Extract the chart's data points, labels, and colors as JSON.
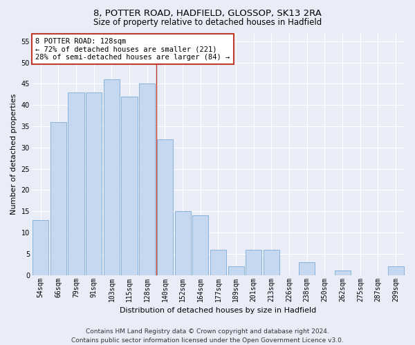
{
  "title1": "8, POTTER ROAD, HADFIELD, GLOSSOP, SK13 2RA",
  "title2": "Size of property relative to detached houses in Hadfield",
  "xlabel": "Distribution of detached houses by size in Hadfield",
  "ylabel": "Number of detached properties",
  "categories": [
    "54sqm",
    "66sqm",
    "79sqm",
    "91sqm",
    "103sqm",
    "115sqm",
    "128sqm",
    "140sqm",
    "152sqm",
    "164sqm",
    "177sqm",
    "189sqm",
    "201sqm",
    "213sqm",
    "226sqm",
    "238sqm",
    "250sqm",
    "262sqm",
    "275sqm",
    "287sqm",
    "299sqm"
  ],
  "values": [
    13,
    36,
    43,
    43,
    46,
    42,
    45,
    32,
    15,
    14,
    6,
    2,
    6,
    6,
    0,
    3,
    0,
    1,
    0,
    0,
    2
  ],
  "bar_color": "#c5d8f0",
  "bar_edge_color": "#7aabd4",
  "highlight_index": 6,
  "highlight_line_color": "#c0392b",
  "ylim": [
    0,
    57
  ],
  "yticks": [
    0,
    5,
    10,
    15,
    20,
    25,
    30,
    35,
    40,
    45,
    50,
    55
  ],
  "annotation_text": "8 POTTER ROAD: 128sqm\n← 72% of detached houses are smaller (221)\n28% of semi-detached houses are larger (84) →",
  "annotation_box_color": "#ffffff",
  "annotation_box_edge_color": "#c0392b",
  "footer_line1": "Contains HM Land Registry data © Crown copyright and database right 2024.",
  "footer_line2": "Contains public sector information licensed under the Open Government Licence v3.0.",
  "background_color": "#e8edf8",
  "grid_color": "#ffffff",
  "title_fontsize": 9.5,
  "subtitle_fontsize": 8.5,
  "tick_fontsize": 7,
  "label_fontsize": 8,
  "annotation_fontsize": 7.5,
  "footer_fontsize": 6.5
}
